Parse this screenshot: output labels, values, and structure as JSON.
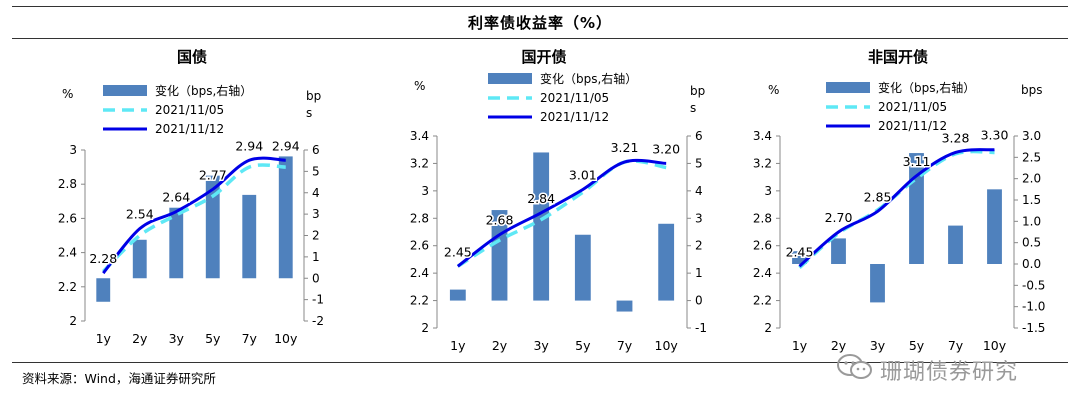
{
  "title": "利率债收益率（%）",
  "source": "资料来源：Wind，海通证券研究所",
  "watermark": "珊瑚债券研究",
  "colors": {
    "bar": "#4f81bd",
    "prev": "#5ee8f5",
    "curr": "#0000e6"
  },
  "chart_data": [
    {
      "id": "guozhai",
      "type": "bar+line",
      "title": "国债",
      "categories": [
        "1y",
        "2y",
        "3y",
        "5y",
        "7y",
        "10y"
      ],
      "y_left_label": "%",
      "y_right_label": "bp\ns",
      "ylim_left": [
        2,
        3
      ],
      "yticks_left": [
        2,
        2.2,
        2.4,
        2.6,
        2.8,
        3
      ],
      "ytick_labels_left": [
        "2",
        "2.2",
        "2.4",
        "2.6",
        "2.8",
        "3"
      ],
      "ylim_right": [
        -2,
        6
      ],
      "yticks_right": [
        -2,
        -1,
        0,
        1,
        2,
        3,
        4,
        5,
        6
      ],
      "ytick_labels_right": [
        "-2",
        "-1",
        "0",
        "1",
        "2",
        "3",
        "4",
        "5",
        "6"
      ],
      "legend": [
        "变化（bps,右轴）",
        "2021/11/05",
        "2021/11/12"
      ],
      "series": [
        {
          "name": "变化（bps,右轴）",
          "kind": "bar",
          "axis": "right",
          "values": [
            -1.1,
            1.8,
            3.3,
            4.8,
            3.9,
            5.7
          ]
        },
        {
          "name": "2021/11/05",
          "kind": "line",
          "axis": "left",
          "values": [
            2.29,
            2.5,
            2.62,
            2.73,
            2.9,
            2.9
          ]
        },
        {
          "name": "2021/11/12",
          "kind": "line",
          "axis": "left",
          "values": [
            2.28,
            2.54,
            2.64,
            2.77,
            2.94,
            2.94
          ]
        }
      ],
      "data_labels": [
        "2.28",
        "2.54",
        "2.64",
        "2.77",
        "2.94",
        "2.94"
      ]
    },
    {
      "id": "guokai",
      "type": "bar+line",
      "title": "国开债",
      "categories": [
        "1y",
        "2y",
        "3y",
        "5y",
        "7y",
        "10y"
      ],
      "y_left_label": "%",
      "y_right_label": "bp\ns",
      "ylim_left": [
        2,
        3.4
      ],
      "yticks_left": [
        2,
        2.2,
        2.4,
        2.6,
        2.8,
        3,
        3.2,
        3.4
      ],
      "ytick_labels_left": [
        "2",
        "2.2",
        "2.4",
        "2.6",
        "2.8",
        "3",
        "3.2",
        "3.4"
      ],
      "ylim_right": [
        -1,
        6
      ],
      "yticks_right": [
        -1,
        0,
        1,
        2,
        3,
        4,
        5,
        6
      ],
      "ytick_labels_right": [
        "-1",
        "0",
        "1",
        "2",
        "3",
        "4",
        "5",
        "6"
      ],
      "legend": [
        "变化（bps,右轴）",
        "2021/11/05",
        "2021/11/12"
      ],
      "series": [
        {
          "name": "变化（bps,右轴）",
          "kind": "bar",
          "axis": "right",
          "values": [
            0.4,
            3.3,
            5.4,
            2.4,
            -0.4,
            2.8
          ]
        },
        {
          "name": "2021/11/05",
          "kind": "line",
          "axis": "left",
          "values": [
            2.45,
            2.64,
            2.79,
            2.99,
            3.21,
            3.17
          ]
        },
        {
          "name": "2021/11/12",
          "kind": "line",
          "axis": "left",
          "values": [
            2.45,
            2.68,
            2.84,
            3.01,
            3.21,
            3.2
          ]
        }
      ],
      "data_labels": [
        "2.45",
        "2.68",
        "2.84",
        "3.01",
        "3.21",
        "3.20"
      ]
    },
    {
      "id": "feiguokai",
      "type": "bar+line",
      "title": "非国开债",
      "categories": [
        "1y",
        "2y",
        "3y",
        "5y",
        "7y",
        "10y"
      ],
      "y_left_label": "%",
      "y_right_label": "bps",
      "ylim_left": [
        2,
        3.4
      ],
      "yticks_left": [
        2,
        2.2,
        2.4,
        2.6,
        2.8,
        3,
        3.2,
        3.4
      ],
      "ytick_labels_left": [
        "2",
        "2.2",
        "2.4",
        "2.6",
        "2.8",
        "3",
        "3.2",
        "3.4"
      ],
      "ylim_right": [
        -1.5,
        3.0
      ],
      "yticks_right": [
        -1.5,
        -1.0,
        -0.5,
        0.0,
        0.5,
        1.0,
        1.5,
        2.0,
        2.5,
        3.0
      ],
      "ytick_labels_right": [
        "-1.5",
        "-1.0",
        "-0.5",
        "0.0",
        "0.5",
        "1.0",
        "1.5",
        "2.0",
        "2.5",
        "3.0"
      ],
      "legend": [
        "变化（bps,右轴）",
        "2021/11/05",
        "2021/11/12"
      ],
      "series": [
        {
          "name": "变化（bps,右轴）",
          "kind": "bar",
          "axis": "right",
          "values": [
            0.3,
            0.6,
            -0.9,
            2.6,
            0.9,
            1.75
          ]
        },
        {
          "name": "2021/11/05",
          "kind": "line",
          "axis": "left",
          "values": [
            2.44,
            2.69,
            2.86,
            3.09,
            3.27,
            3.28
          ]
        },
        {
          "name": "2021/11/12",
          "kind": "line",
          "axis": "left",
          "values": [
            2.45,
            2.7,
            2.85,
            3.11,
            3.28,
            3.3
          ]
        }
      ],
      "data_labels": [
        "2.45",
        "2.70",
        "2.85",
        "3.11",
        "3.28",
        "3.30"
      ]
    }
  ]
}
